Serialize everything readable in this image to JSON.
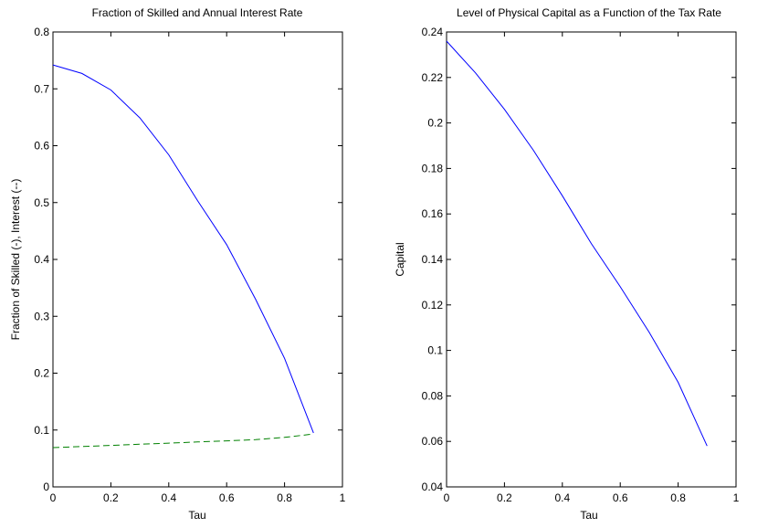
{
  "chart_data": [
    {
      "type": "line",
      "title": "Fraction of Skilled and Annual Interest Rate",
      "xlabel": "Tau",
      "ylabel": "Fraction of Skilled (-), Interest (--)",
      "xlim": [
        0,
        1
      ],
      "ylim": [
        0,
        0.8
      ],
      "x_ticks": [
        "0",
        "0.2",
        "0.4",
        "0.6",
        "0.8",
        "1"
      ],
      "y_ticks": [
        "0",
        "0.1",
        "0.2",
        "0.3",
        "0.4",
        "0.5",
        "0.6",
        "0.7",
        "0.8"
      ],
      "grid": false,
      "series": [
        {
          "style": "solid",
          "color": "#0000ff",
          "x": [
            0,
            0.1,
            0.2,
            0.3,
            0.4,
            0.5,
            0.6,
            0.7,
            0.8,
            0.9
          ],
          "y": [
            0.742,
            0.727,
            0.698,
            0.649,
            0.584,
            0.503,
            0.426,
            0.33,
            0.226,
            0.095
          ]
        },
        {
          "style": "dashed",
          "color": "#008000",
          "x": [
            0,
            0.1,
            0.2,
            0.3,
            0.4,
            0.5,
            0.6,
            0.7,
            0.8,
            0.9
          ],
          "y": [
            0.069,
            0.071,
            0.073,
            0.075,
            0.077,
            0.079,
            0.081,
            0.083,
            0.087,
            0.093
          ]
        }
      ]
    },
    {
      "type": "line",
      "title": "Level of Physical Capital as a Function of the Tax Rate",
      "xlabel": "Tau",
      "ylabel": "Capital",
      "xlim": [
        0,
        1
      ],
      "ylim": [
        0.04,
        0.24
      ],
      "x_ticks": [
        "0",
        "0.2",
        "0.4",
        "0.6",
        "0.8",
        "1"
      ],
      "y_ticks": [
        "0.04",
        "0.06",
        "0.08",
        "0.1",
        "0.12",
        "0.14",
        "0.16",
        "0.18",
        "0.2",
        "0.22",
        "0.24"
      ],
      "grid": false,
      "series": [
        {
          "style": "solid",
          "color": "#0000ff",
          "x": [
            0,
            0.1,
            0.2,
            0.3,
            0.4,
            0.5,
            0.6,
            0.7,
            0.8,
            0.9
          ],
          "y": [
            0.236,
            0.222,
            0.206,
            0.188,
            0.168,
            0.147,
            0.128,
            0.108,
            0.086,
            0.058
          ]
        }
      ]
    }
  ]
}
